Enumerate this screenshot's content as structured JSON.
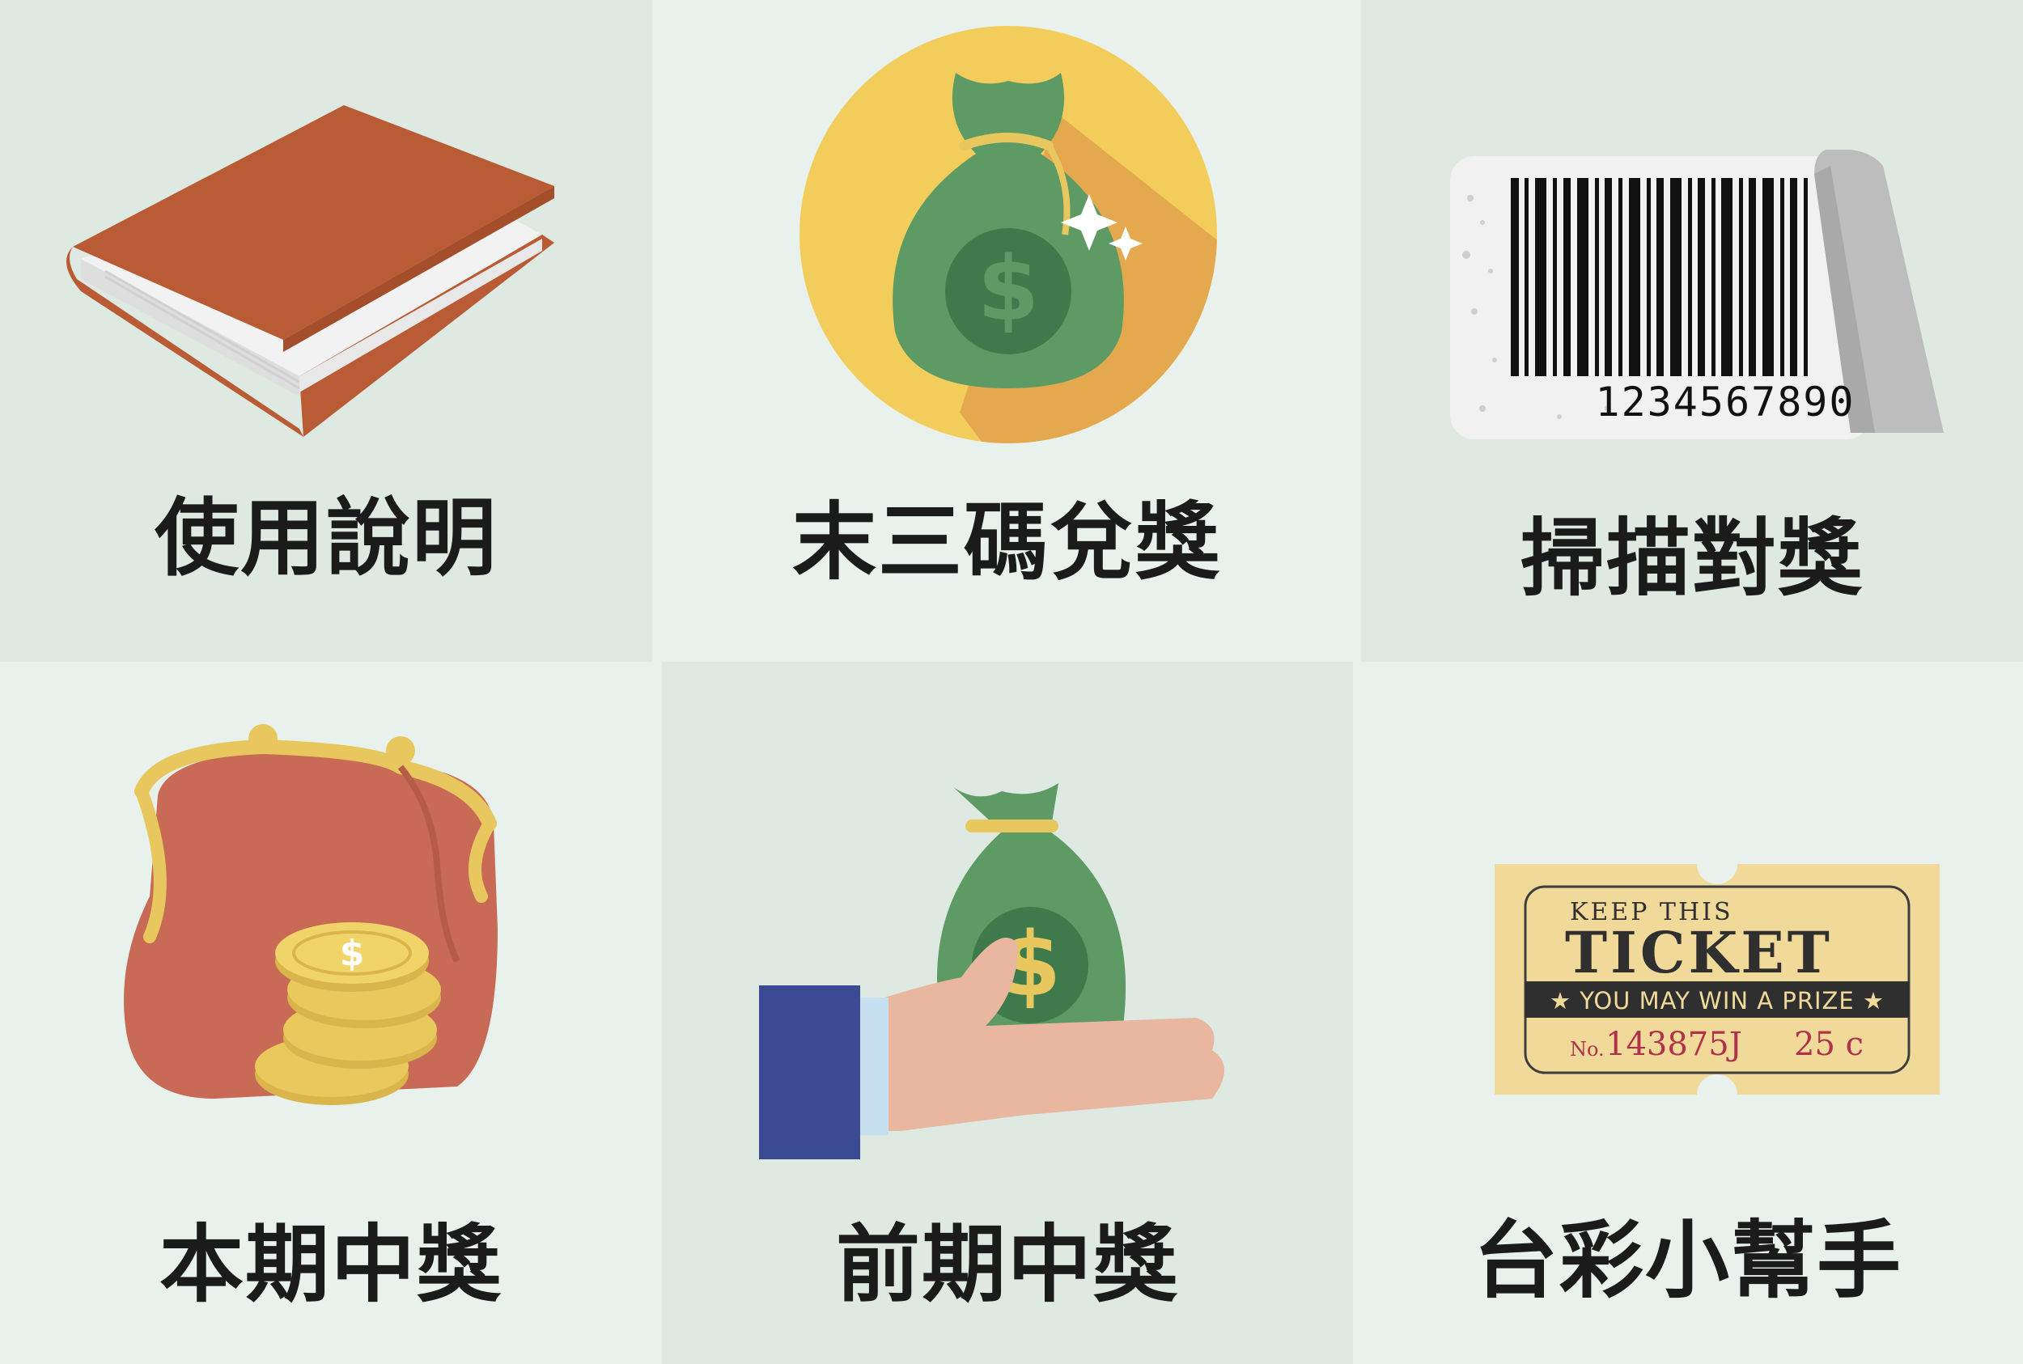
{
  "menu": {
    "items": [
      {
        "label": "使用說明",
        "icon": "book-icon"
      },
      {
        "label": "末三碼兌獎",
        "icon": "money-bag-icon"
      },
      {
        "label": "掃描對獎",
        "icon": "barcode-icon"
      },
      {
        "label": "本期中獎",
        "icon": "coin-purse-icon"
      },
      {
        "label": "前期中獎",
        "icon": "hand-money-bag-icon"
      },
      {
        "label": "台彩小幫手",
        "icon": "lottery-ticket-icon"
      }
    ]
  },
  "barcode": {
    "digits": "1234567890"
  },
  "ticket": {
    "line1": "KEEP THIS",
    "line2": "TICKET",
    "banner": "★ YOU MAY WIN A PRIZE ★",
    "no_label": "No.",
    "number": "143875J",
    "price": "25 c"
  },
  "colors": {
    "tile_dark": "#dde9e1",
    "tile_light": "#e8f1ec",
    "text": "#1b1b1b"
  }
}
